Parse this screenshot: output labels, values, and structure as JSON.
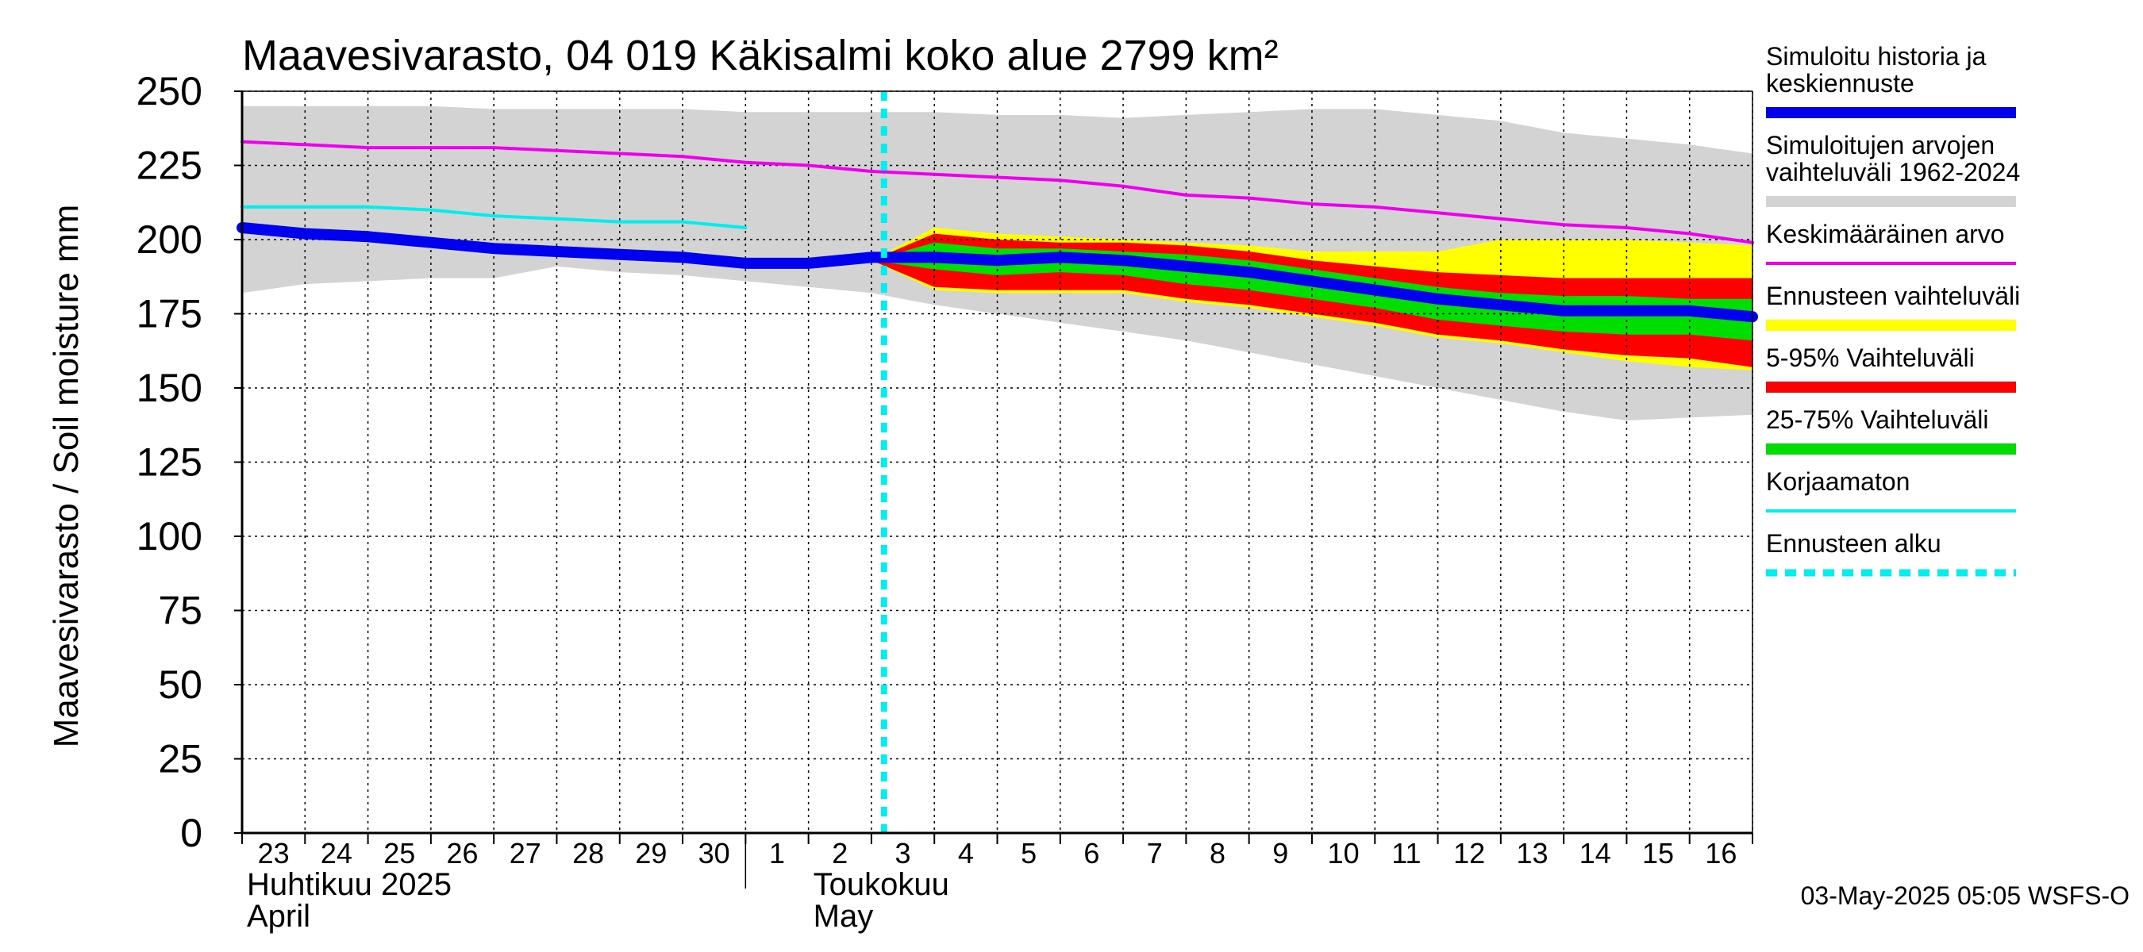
{
  "chart_data": {
    "type": "line",
    "title": "Maavesivarasto, 04 019 Käkisalmi koko alue 2799 km²",
    "ylabel": "Maavesivarasto / Soil moisture   mm",
    "ylim": [
      0,
      250
    ],
    "yticks": [
      0,
      25,
      50,
      75,
      100,
      125,
      150,
      175,
      200,
      225,
      250
    ],
    "grid": true,
    "x_days": [
      0,
      1,
      2,
      3,
      4,
      5,
      6,
      7,
      8,
      9,
      10,
      11,
      12,
      13,
      14,
      15,
      16,
      17,
      18,
      19,
      20,
      21,
      22,
      23,
      24
    ],
    "x_tick_labels": [
      "23",
      "24",
      "25",
      "26",
      "27",
      "28",
      "29",
      "30",
      "1",
      "2",
      "3",
      "4",
      "5",
      "6",
      "7",
      "8",
      "9",
      "10",
      "11",
      "12",
      "13",
      "14",
      "15",
      "16"
    ],
    "x_range": [
      0,
      24
    ],
    "month_labels": [
      {
        "day": 0,
        "line1": "Huhtikuu  2025",
        "line2": "April"
      },
      {
        "day": 9,
        "line1": "Toukokuu",
        "line2": "May"
      }
    ],
    "month_separator_day": 8,
    "forecast_start_day": 10.2,
    "series": [
      {
        "name": "Simuloitujen arvojen vaihteluväli 1962-2024",
        "kind": "band",
        "color": "#d3d3d3",
        "x": [
          0,
          1,
          2,
          3,
          4,
          5,
          6,
          7,
          8,
          9,
          10,
          11,
          12,
          13,
          14,
          15,
          16,
          17,
          18,
          19,
          20,
          21,
          22,
          23,
          24
        ],
        "upper": [
          245,
          245,
          245,
          245,
          244,
          244,
          244,
          244,
          243,
          243,
          243,
          243,
          242,
          242,
          241,
          242,
          243,
          244,
          244,
          242,
          240,
          236,
          234,
          232,
          229
        ],
        "lower": [
          182,
          185,
          186,
          187,
          187,
          191,
          189,
          188,
          186,
          184,
          182,
          178,
          175,
          172,
          169,
          166,
          162,
          158,
          154,
          150,
          146,
          142,
          139,
          140,
          141
        ]
      },
      {
        "name": "Ennusteen vaihteluväli",
        "kind": "band",
        "color": "#ffff00",
        "x": [
          10,
          11,
          12,
          13,
          14,
          15,
          16,
          17,
          18,
          19,
          20,
          21,
          22,
          23,
          24
        ],
        "upper": [
          193,
          204,
          202,
          201,
          200,
          199,
          198,
          196,
          196,
          196,
          200,
          200,
          200,
          199,
          198
        ],
        "lower": [
          193,
          183,
          182,
          182,
          182,
          179,
          177,
          174,
          171,
          167,
          165,
          162,
          159,
          157,
          156
        ]
      },
      {
        "name": "5-95% Vaihteluväli",
        "kind": "band",
        "color": "#ff0000",
        "x": [
          10,
          11,
          12,
          13,
          14,
          15,
          16,
          17,
          18,
          19,
          20,
          21,
          22,
          23,
          24
        ],
        "upper": [
          193,
          202,
          200,
          199,
          199,
          198,
          196,
          193,
          191,
          189,
          188,
          187,
          187,
          187,
          187
        ],
        "lower": [
          193,
          184,
          183,
          183,
          183,
          180,
          178,
          175,
          172,
          168,
          166,
          163,
          161,
          160,
          157
        ]
      },
      {
        "name": "25-75% Vaihteluväli",
        "kind": "band",
        "color": "#00dd00",
        "x": [
          10,
          11,
          12,
          13,
          14,
          15,
          16,
          17,
          18,
          19,
          20,
          21,
          22,
          23,
          24
        ],
        "upper": [
          193,
          199,
          197,
          197,
          196,
          195,
          193,
          190,
          187,
          184,
          182,
          181,
          181,
          180,
          180
        ],
        "lower": [
          193,
          190,
          188,
          189,
          188,
          185,
          183,
          180,
          177,
          173,
          171,
          169,
          168,
          168,
          166
        ]
      },
      {
        "name": "Keskimääräinen arvo",
        "kind": "line",
        "color": "#ee00ee",
        "width": 4,
        "x": [
          0,
          1,
          2,
          3,
          4,
          5,
          6,
          7,
          8,
          9,
          10,
          11,
          12,
          13,
          14,
          15,
          16,
          17,
          18,
          19,
          20,
          21,
          22,
          23,
          24
        ],
        "values": [
          233,
          232,
          231,
          231,
          231,
          230,
          229,
          228,
          226,
          225,
          223,
          222,
          221,
          220,
          218,
          215,
          214,
          212,
          211,
          209,
          207,
          205,
          204,
          202,
          199
        ]
      },
      {
        "name": "Korjaamaton",
        "kind": "line",
        "color": "#00eeee",
        "width": 4,
        "x": [
          0,
          1,
          2,
          3,
          4,
          5,
          6,
          7,
          8
        ],
        "values": [
          211,
          211,
          211,
          210,
          208,
          207,
          206,
          206,
          204
        ]
      },
      {
        "name": "Simuloitu historia ja keskiennuste",
        "kind": "line",
        "color": "#0000ee",
        "width": 14,
        "x": [
          0,
          1,
          2,
          3,
          4,
          5,
          6,
          7,
          8,
          9,
          10,
          11,
          12,
          13,
          14,
          15,
          16,
          17,
          18,
          19,
          20,
          21,
          22,
          23,
          24
        ],
        "values": [
          204,
          202,
          201,
          199,
          197,
          196,
          195,
          194,
          192,
          192,
          194,
          194,
          193,
          194,
          193,
          191,
          189,
          186,
          183,
          180,
          178,
          176,
          176,
          176,
          174
        ]
      }
    ]
  },
  "legend": {
    "items": [
      {
        "label": "Simuloitu historia ja\nkeskiennuste",
        "color": "#0000ee",
        "style": "thick"
      },
      {
        "label": "Simuloitujen arvojen\nvaihteluväli 1962-2024",
        "color": "#d3d3d3",
        "style": "thick"
      },
      {
        "label": "Keskimääräinen arvo",
        "color": "#ee00ee",
        "style": "thin"
      },
      {
        "label": "Ennusteen vaihteluväli",
        "color": "#ffff00",
        "style": "thick"
      },
      {
        "label": "5-95% Vaihteluväli",
        "color": "#ff0000",
        "style": "thick"
      },
      {
        "label": "25-75% Vaihteluväli",
        "color": "#00dd00",
        "style": "thick"
      },
      {
        "label": "Korjaamaton",
        "color": "#00eeee",
        "style": "thin"
      },
      {
        "label": "Ennusteen alku",
        "color": "#00eeee",
        "style": "dashed"
      }
    ]
  },
  "footer": {
    "timestamp": "03-May-2025 05:05 WSFS-O"
  }
}
